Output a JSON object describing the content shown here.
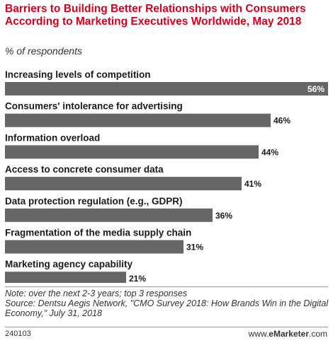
{
  "chart_data": {
    "type": "bar",
    "orientation": "horizontal",
    "title": "Barriers to Building Better Relationships with Consumers According to Marketing Executives Worldwide, May 2018",
    "subtitle": "% of respondents",
    "categories": [
      "Increasing levels of competition",
      "Consumers' intolerance for advertising",
      "Information overload",
      "Access to concrete consumer data",
      "Data protection regulation (e.g., GDPR)",
      "Fragmentation of the media supply chain",
      "Marketing agency capability"
    ],
    "values": [
      56,
      46,
      44,
      41,
      36,
      31,
      21
    ],
    "value_labels": [
      "56%",
      "46%",
      "44%",
      "41%",
      "36%",
      "31%",
      "21%"
    ],
    "xlim": [
      0,
      56
    ],
    "grid": false,
    "colors": {
      "bar": "#666666",
      "title": "#d6001c"
    }
  },
  "header": {
    "title": "Barriers to Building Better Relationships with Consumers According to Marketing Executives Worldwide, May 2018",
    "subtitle": "% of respondents"
  },
  "footer": {
    "note": "Note: over the next 2-3 years; top 3 responses",
    "source": "Source: Dentsu Aegis Network, \"CMO Survey 2018: How Brands Win in the Digital Economy,\" July 31, 2018",
    "chart_id": "240103",
    "brand_prefix": "www.",
    "brand_name": "eMarketer",
    "brand_suffix": ".com"
  }
}
